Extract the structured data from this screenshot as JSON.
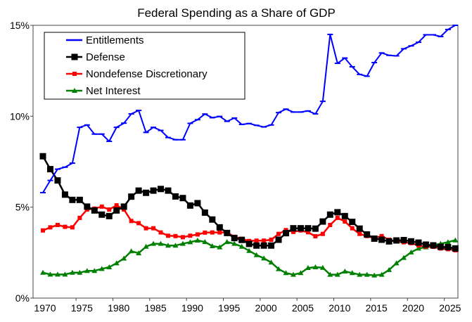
{
  "chart_data": {
    "type": "line",
    "title": "Federal Spending as a Share of GDP",
    "xlabel": "",
    "ylabel": "",
    "x": [
      1970,
      1971,
      1972,
      1973,
      1974,
      1975,
      1976,
      1977,
      1978,
      1979,
      1980,
      1981,
      1982,
      1983,
      1984,
      1985,
      1986,
      1987,
      1988,
      1989,
      1990,
      1991,
      1992,
      1993,
      1994,
      1995,
      1996,
      1997,
      1998,
      1999,
      2000,
      2001,
      2002,
      2003,
      2004,
      2005,
      2006,
      2007,
      2008,
      2009,
      2010,
      2011,
      2012,
      2013,
      2014,
      2015,
      2016,
      2017,
      2018,
      2019,
      2020,
      2021,
      2022,
      2023,
      2024,
      2025,
      2026
    ],
    "xticks": [
      "1970",
      "1975",
      "1980",
      "1985",
      "1990",
      "1995",
      "2000",
      "2005",
      "2010",
      "2015",
      "2020",
      "2025"
    ],
    "yticks": [
      "0%",
      "5%",
      "10%",
      "15%"
    ],
    "ylim": [
      0,
      15
    ],
    "grid": false,
    "legend": "top-left",
    "series": [
      {
        "name": "Entitlements",
        "color": "#0000ff",
        "marker": "dash",
        "values": [
          5.8,
          6.47,
          7.09,
          7.2,
          7.42,
          9.39,
          9.52,
          9.02,
          9.02,
          8.62,
          9.39,
          9.62,
          10.13,
          10.32,
          9.11,
          9.39,
          9.22,
          8.83,
          8.71,
          8.71,
          9.61,
          9.81,
          10.12,
          9.92,
          9.99,
          9.72,
          9.9,
          9.55,
          9.6,
          9.5,
          9.41,
          9.52,
          10.2,
          10.39,
          10.23,
          10.23,
          10.29,
          10.13,
          10.82,
          14.5,
          12.91,
          13.2,
          12.72,
          12.3,
          12.2,
          12.95,
          13.48,
          13.35,
          13.32,
          13.71,
          13.87,
          14.07,
          14.48,
          14.48,
          14.38,
          14.77,
          15.0
        ]
      },
      {
        "name": "Defense",
        "color": "#000000",
        "marker": "square",
        "values": [
          7.8,
          7.09,
          6.47,
          5.69,
          5.4,
          5.4,
          5.03,
          4.82,
          4.59,
          4.51,
          4.82,
          5.03,
          5.58,
          5.91,
          5.79,
          5.91,
          6.0,
          5.91,
          5.59,
          5.5,
          5.09,
          5.22,
          4.7,
          4.32,
          3.89,
          3.58,
          3.3,
          3.2,
          2.98,
          2.89,
          2.89,
          2.89,
          3.21,
          3.57,
          3.84,
          3.84,
          3.84,
          3.82,
          4.21,
          4.59,
          4.72,
          4.51,
          4.19,
          3.82,
          3.5,
          3.27,
          3.21,
          3.12,
          3.17,
          3.19,
          3.12,
          3.05,
          2.94,
          2.9,
          2.82,
          2.8,
          2.73
        ]
      },
      {
        "name": "Nondefense Discretionary",
        "color": "#ff0000",
        "marker": "small-square",
        "values": [
          3.72,
          3.89,
          4.02,
          3.92,
          3.89,
          4.41,
          4.87,
          4.92,
          5.03,
          4.87,
          5.1,
          4.87,
          4.24,
          4.12,
          3.84,
          3.84,
          3.61,
          3.43,
          3.41,
          3.35,
          3.43,
          3.5,
          3.6,
          3.61,
          3.61,
          3.61,
          3.37,
          3.26,
          3.14,
          3.16,
          3.16,
          3.21,
          3.53,
          3.74,
          3.64,
          3.72,
          3.62,
          3.4,
          3.53,
          4.02,
          4.41,
          4.21,
          3.84,
          3.53,
          3.41,
          3.3,
          3.41,
          3.21,
          3.12,
          3.07,
          3.02,
          2.9,
          2.83,
          2.82,
          2.73,
          2.69,
          2.63
        ]
      },
      {
        "name": "Net Interest",
        "color": "#008000",
        "marker": "triangle",
        "values": [
          1.4,
          1.3,
          1.3,
          1.3,
          1.4,
          1.4,
          1.5,
          1.5,
          1.61,
          1.7,
          1.92,
          2.18,
          2.58,
          2.47,
          2.83,
          2.99,
          2.99,
          2.89,
          2.89,
          2.99,
          3.08,
          3.17,
          3.09,
          2.86,
          2.8,
          3.09,
          2.99,
          2.83,
          2.6,
          2.37,
          2.19,
          1.96,
          1.6,
          1.38,
          1.29,
          1.38,
          1.66,
          1.7,
          1.67,
          1.29,
          1.29,
          1.47,
          1.38,
          1.29,
          1.29,
          1.25,
          1.29,
          1.55,
          1.92,
          2.22,
          2.52,
          2.73,
          2.8,
          2.91,
          2.99,
          3.08,
          3.18
        ]
      }
    ]
  }
}
